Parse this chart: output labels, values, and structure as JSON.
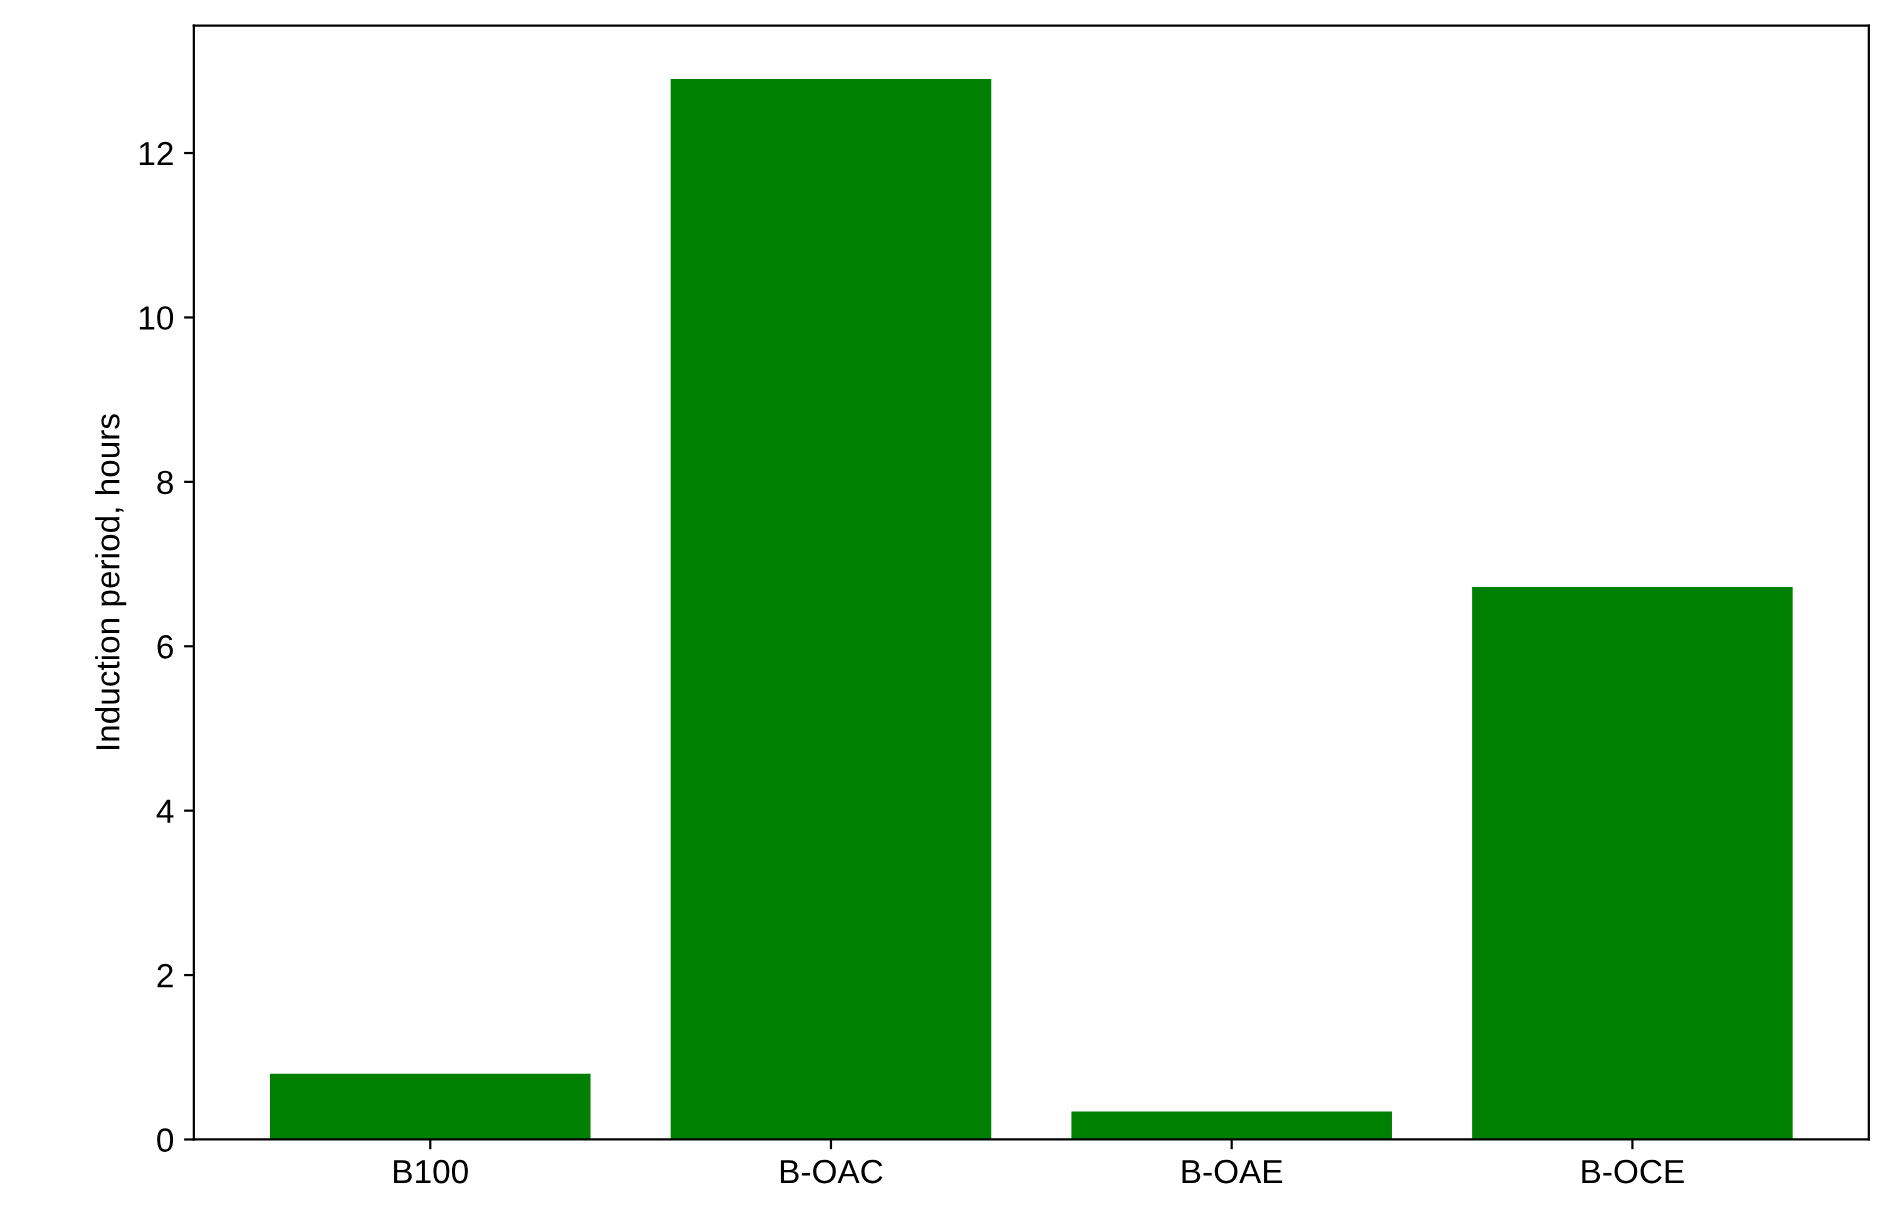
{
  "chart_data": {
    "type": "bar",
    "ylabel": "Induction period, hours",
    "categories": [
      "B100",
      "B-OAC",
      "B-OAE",
      "B-OCE"
    ],
    "values": [
      0.8,
      12.9,
      0.34,
      6.72
    ],
    "color": "#008000",
    "ylim": [
      0,
      13.55
    ],
    "yticks": [
      0,
      2,
      4,
      6,
      8,
      10,
      12
    ],
    "grid": false
  }
}
